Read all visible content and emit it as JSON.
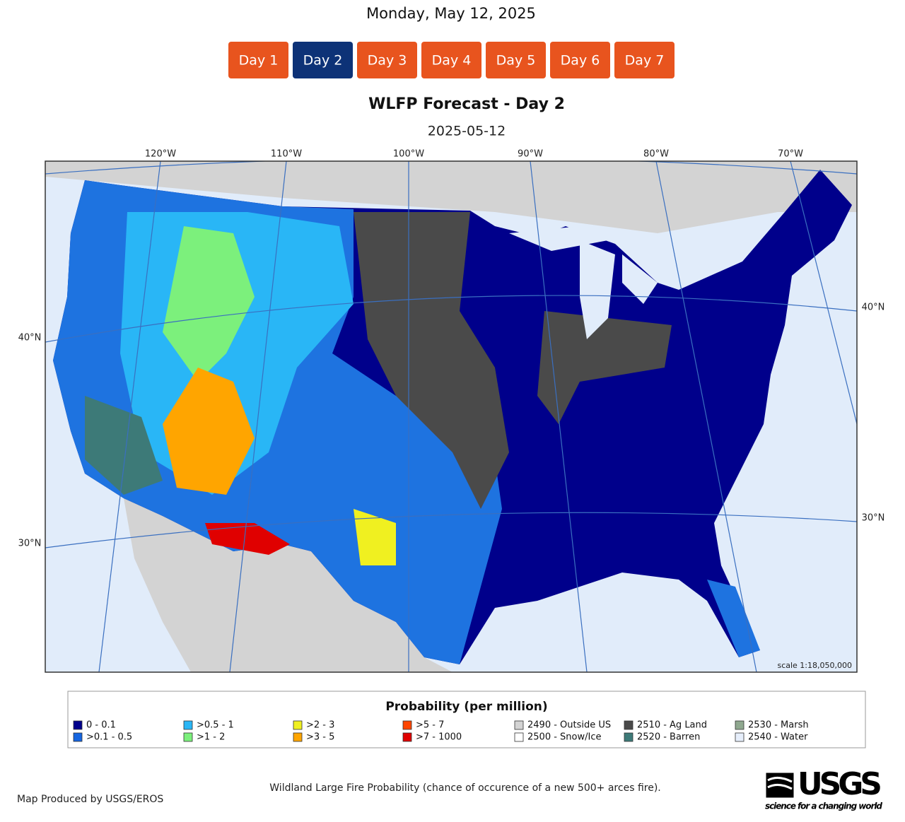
{
  "header": {
    "date": "Monday, May 12, 2025"
  },
  "day_buttons": [
    {
      "label": "Day 1",
      "active": false
    },
    {
      "label": "Day 2",
      "active": true
    },
    {
      "label": "Day 3",
      "active": false
    },
    {
      "label": "Day 4",
      "active": false
    },
    {
      "label": "Day 5",
      "active": false
    },
    {
      "label": "Day 6",
      "active": false
    },
    {
      "label": "Day 7",
      "active": false
    }
  ],
  "map": {
    "title": "WLFP Forecast - Day 2",
    "subtitle": "2025-05-12",
    "longitude_labels": [
      "120°W",
      "110°W",
      "100°W",
      "90°W",
      "80°W",
      "70°W"
    ],
    "latitude_labels_left": [
      "40°N",
      "30°N"
    ],
    "latitude_labels_right": [
      "40°N",
      "30°N"
    ],
    "scale": "scale 1:18,050,000"
  },
  "legend": {
    "title": "Probability (per million)",
    "items": [
      {
        "label": "0 - 0.1",
        "color": "#00008b"
      },
      {
        "label": ">0.1 - 0.5",
        "color": "#1565e0"
      },
      {
        "label": ">0.5 - 1",
        "color": "#29b6f6"
      },
      {
        "label": ">1 - 2",
        "color": "#7cf07c"
      },
      {
        "label": ">2 - 3",
        "color": "#f0f020"
      },
      {
        "label": ">3 - 5",
        "color": "#ffa500"
      },
      {
        "label": ">5 - 7",
        "color": "#ff4500"
      },
      {
        "label": ">7 - 1000",
        "color": "#e00000"
      },
      {
        "label": "2490 - Outside US",
        "color": "#d3d3d3"
      },
      {
        "label": "2500 - Snow/Ice",
        "color": "#ffffff"
      },
      {
        "label": "2510 - Ag Land",
        "color": "#4a4a4a"
      },
      {
        "label": "2520 - Barren",
        "color": "#3d7a78"
      },
      {
        "label": "2530 - Marsh",
        "color": "#8fa88f"
      },
      {
        "label": "2540 - Water",
        "color": "#e6eefb"
      }
    ]
  },
  "footer": {
    "credit": "Map Produced by USGS/EROS",
    "caption": "Wildland Large Fire Probability (chance of occurence of a new 500+ arces fire).",
    "logo": "USGS",
    "tagline": "science for a changing world"
  }
}
